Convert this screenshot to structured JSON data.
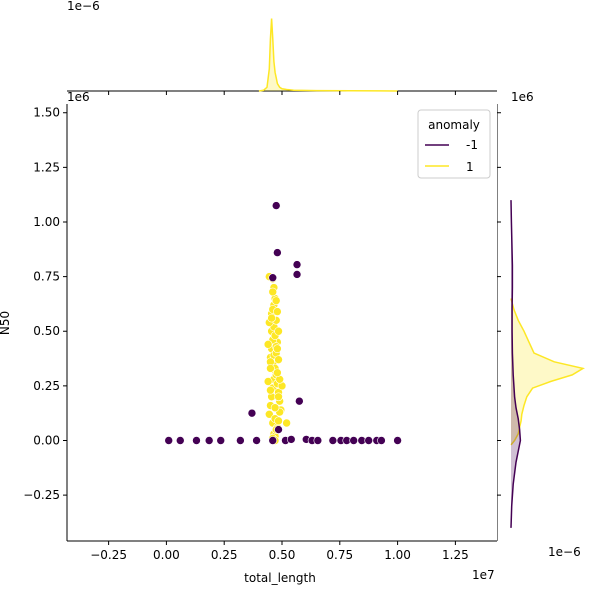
{
  "chart_data": {
    "type": "scatter",
    "title": "",
    "xlabel": "total_length",
    "ylabel": "N50",
    "x_scale_text": "1e7",
    "y_scale_text": "1e6",
    "top_marginal_scale_text": "1e−6",
    "right_marginal_top_scale_text": "1e6",
    "right_marginal_scale_text": "1e−6",
    "xlim": [
      -4300000,
      14300000
    ],
    "ylim": [
      -460000,
      1540000
    ],
    "x_ticks": [
      {
        "value": -2500000,
        "label": "−0.25"
      },
      {
        "value": 0,
        "label": "0.00"
      },
      {
        "value": 2500000,
        "label": "0.25"
      },
      {
        "value": 5000000,
        "label": "0.50"
      },
      {
        "value": 7500000,
        "label": "0.75"
      },
      {
        "value": 10000000,
        "label": "1.00"
      },
      {
        "value": 12500000,
        "label": "1.25"
      }
    ],
    "y_ticks": [
      {
        "value": -250000,
        "label": "−0.25"
      },
      {
        "value": 0,
        "label": "0.00"
      },
      {
        "value": 250000,
        "label": "0.25"
      },
      {
        "value": 500000,
        "label": "0.50"
      },
      {
        "value": 750000,
        "label": "0.75"
      },
      {
        "value": 1000000,
        "label": "1.00"
      },
      {
        "value": 1250000,
        "label": "1.25"
      },
      {
        "value": 1500000,
        "label": "1.50"
      }
    ],
    "legend": {
      "title": "anomaly",
      "placement": "top-right",
      "entries": [
        {
          "label": "-1",
          "color": "#440154"
        },
        {
          "label": "1",
          "color": "#fde725"
        }
      ]
    },
    "series": [
      {
        "name": "-1",
        "color": "#440154",
        "x": [
          100000,
          600000,
          1300000,
          1850000,
          2350000,
          3200000,
          3900000,
          4600000,
          5150000,
          5400000,
          6050000,
          6300000,
          6550000,
          7200000,
          7550000,
          7800000,
          8100000,
          8450000,
          8750000,
          9100000,
          9300000,
          10000000,
          4750000,
          4800000,
          4600000,
          5650000,
          5650000,
          3700000,
          5750000,
          4850000
        ],
        "y": [
          0,
          0,
          0,
          0,
          0,
          0,
          0,
          0,
          0,
          5000,
          5000,
          0,
          0,
          0,
          0,
          0,
          0,
          0,
          0,
          0,
          0,
          0,
          1075000,
          860000,
          745000,
          805000,
          760000,
          125000,
          180000,
          50000
        ]
      },
      {
        "name": "1",
        "color": "#fde725",
        "x": [
          4450000,
          4500000,
          4550000,
          4600000,
          4650000,
          4700000,
          4750000,
          4800000,
          4850000,
          4900000,
          4950000,
          5000000,
          4500000,
          4550000,
          4600000,
          4650000,
          4700000,
          4750000,
          4800000,
          4850000,
          4900000,
          4550000,
          4600000,
          4650000,
          4700000,
          4750000,
          4800000,
          4850000,
          4400000,
          4500000,
          4600000,
          4700000,
          4800000,
          4900000,
          4450000,
          4550000,
          4650000,
          4750000,
          4850000,
          4500000,
          4600000,
          4700000,
          4800000,
          4550000,
          4650000,
          4750000,
          4600000,
          4700000,
          4650000,
          4700000,
          4400000,
          4600000,
          4750000,
          4850000,
          4500000,
          5200000,
          4600000,
          4700000,
          4450000,
          4800000
        ],
        "y": [
          120000,
          160000,
          200000,
          240000,
          280000,
          320000,
          300000,
          260000,
          220000,
          180000,
          140000,
          250000,
          380000,
          420000,
          350000,
          390000,
          330000,
          400000,
          450000,
          370000,
          280000,
          500000,
          460000,
          520000,
          480000,
          430000,
          310000,
          200000,
          270000,
          230000,
          80000,
          100000,
          60000,
          130000,
          540000,
          580000,
          620000,
          550000,
          500000,
          360000,
          600000,
          650000,
          420000,
          560000,
          700000,
          640000,
          740000,
          150000,
          30000,
          20000,
          440000,
          10000,
          50000,
          90000,
          330000,
          80000,
          680000,
          0,
          750000,
          590000
        ]
      }
    ],
    "top_marginal_density": {
      "x": [
        4000000,
        4200000,
        4350000,
        4450000,
        4500000,
        4550000,
        4600000,
        4650000,
        4700000,
        4750000,
        4800000,
        4900000,
        5000000,
        5200000,
        5500000,
        6500000,
        8000000,
        10000000
      ],
      "y": [
        0,
        0.01,
        0.05,
        0.3,
        0.7,
        0.98,
        0.7,
        0.4,
        0.25,
        0.18,
        0.1,
        0.05,
        0.03,
        0.02,
        0.01,
        0.005,
        0.003,
        0
      ]
    },
    "right_marginal_density": {
      "series": [
        {
          "name": "1",
          "y": [
            -20000,
            0,
            30000,
            60000,
            90000,
            120000,
            160000,
            200000,
            240000,
            270000,
            300000,
            330000,
            360000,
            400000,
            450000,
            500000,
            550000,
            600000,
            650000
          ],
          "density": [
            0.0,
            0.05,
            0.1,
            0.12,
            0.14,
            0.15,
            0.18,
            0.22,
            0.3,
            0.55,
            0.85,
            1.0,
            0.6,
            0.32,
            0.25,
            0.18,
            0.1,
            0.04,
            0.0
          ]
        },
        {
          "name": "-1",
          "y": [
            -400000,
            -300000,
            -200000,
            -100000,
            -50000,
            0,
            50000,
            100000,
            150000,
            200000,
            300000,
            400000,
            500000,
            600000,
            700000,
            800000,
            900000,
            1000000,
            1100000
          ],
          "density": [
            0.0,
            0.01,
            0.03,
            0.07,
            0.1,
            0.13,
            0.12,
            0.1,
            0.07,
            0.05,
            0.03,
            0.02,
            0.015,
            0.015,
            0.02,
            0.02,
            0.012,
            0.005,
            0.0
          ]
        }
      ]
    }
  }
}
